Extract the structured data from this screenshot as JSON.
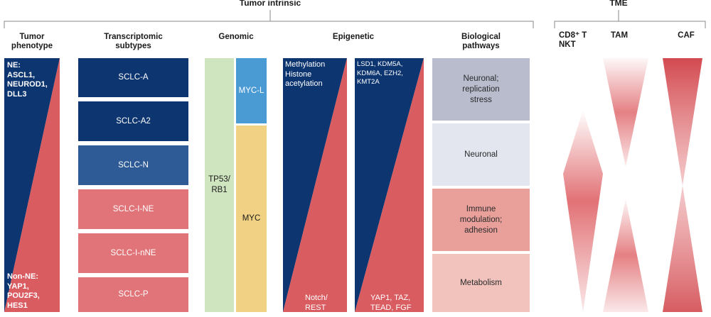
{
  "groups": {
    "tumor_intrinsic": "Tumor intrinsic",
    "tme": "TME"
  },
  "column_headers": {
    "tumor_phenotype": "Tumor\nphenotype",
    "transcriptomic": "Transcriptomic\nsubtypes",
    "genomic": "Genomic",
    "epigenetic": "Epigenetic",
    "biological": "Biological\npathways",
    "cd8": "CD8⁺ T\nNKT",
    "tam": "TAM",
    "caf": "CAF"
  },
  "phenotype": {
    "ne_label": "NE:\nASCL1,\nNEUROD1,\nDLL3",
    "non_ne_label": "Non-NE:\nYAP1,\nPOU2F3,\nHES1"
  },
  "subtypes": [
    "SCLC-A",
    "SCLC-A2",
    "SCLC-N",
    "SCLC-I-NE",
    "SCLC-I-nNE",
    "SCLC-P"
  ],
  "genomic": {
    "tp53": "TP53/\nRB1",
    "mycl": "MYC-L",
    "myc": "MYC"
  },
  "epigenetic": {
    "methylation": "Methylation\nHistone\nacetylation",
    "notch": "Notch/\nREST",
    "lsd1": "LSD1, KDM5A,\nKDM6A, EZH2,\nKMT2A",
    "yap": "YAP1, TAZ,\nTEAD, FGF"
  },
  "pathways": [
    "Neuronal;\nreplication\nstress",
    "Neuronal",
    "Immune\nmodulation;\nadhesion",
    "Metabolism"
  ],
  "colors": {
    "navy": "#0d3570",
    "navy_mid": "#1a4480",
    "navy_light": "#2e5a96",
    "red": "#d95c61",
    "red_mid": "#e07478",
    "red_light": "#e89a9b",
    "green": "#cfe5c0",
    "blue": "#4a9ad4",
    "yellow": "#f1d284",
    "p1": "#b8bccd",
    "p2": "#e3e6ee",
    "p3": "#e9a09b",
    "p4": "#f2c3bd"
  }
}
